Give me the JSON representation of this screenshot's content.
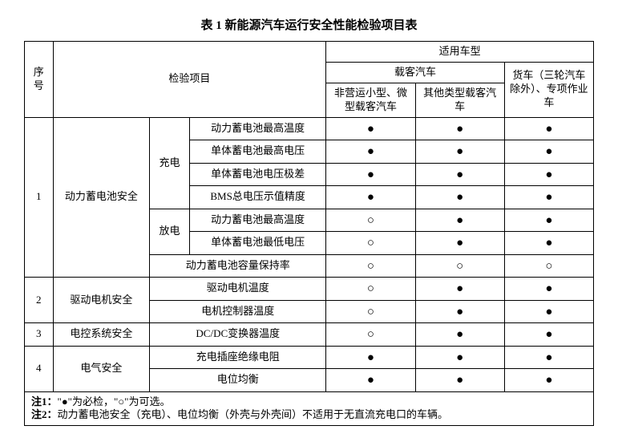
{
  "title": "表 1 新能源汽车运行安全性能检验项目表",
  "headers": {
    "seq": "序号",
    "item": "检验项目",
    "applicable": "适用车型",
    "passenger": "载客汽车",
    "c1": "非营运小型、微型载客汽车",
    "c2": "其他类型载客汽车",
    "c3": "货车（三轮汽车除外）、专项作业车"
  },
  "sections": [
    {
      "seq": "1",
      "cat": "动力蓄电池安全",
      "sub": "充电",
      "items": [
        {
          "name": "动力蓄电池最高温度",
          "v": [
            "●",
            "●",
            "●"
          ]
        },
        {
          "name": "单体蓄电池最高电压",
          "v": [
            "●",
            "●",
            "●"
          ]
        },
        {
          "name": "单体蓄电池电压极差",
          "v": [
            "●",
            "●",
            "●"
          ]
        },
        {
          "name": "BMS总电压示值精度",
          "v": [
            "●",
            "●",
            "●"
          ]
        }
      ]
    },
    {
      "sub": "放电",
      "items": [
        {
          "name": "动力蓄电池最高温度",
          "v": [
            "○",
            "●",
            "●"
          ]
        },
        {
          "name": "单体蓄电池最低电压",
          "v": [
            "○",
            "●",
            "●"
          ]
        }
      ]
    },
    {
      "items": [
        {
          "name": "动力蓄电池容量保持率",
          "span": true,
          "v": [
            "○",
            "○",
            "○"
          ]
        }
      ]
    },
    {
      "seq": "2",
      "cat": "驱动电机安全",
      "items": [
        {
          "name": "驱动电机温度",
          "span": true,
          "v": [
            "○",
            "●",
            "●"
          ]
        },
        {
          "name": "电机控制器温度",
          "span": true,
          "v": [
            "○",
            "●",
            "●"
          ]
        }
      ]
    },
    {
      "seq": "3",
      "cat": "电控系统安全",
      "items": [
        {
          "name": "DC/DC变换器温度",
          "span": true,
          "v": [
            "○",
            "●",
            "●"
          ]
        }
      ]
    },
    {
      "seq": "4",
      "cat": "电气安全",
      "items": [
        {
          "name": "充电插座绝缘电阻",
          "span": true,
          "v": [
            "●",
            "●",
            "●"
          ]
        },
        {
          "name": "电位均衡",
          "span": true,
          "v": [
            "●",
            "●",
            "●"
          ]
        }
      ]
    }
  ],
  "notes": [
    "注1：\"●\"为必检，\"○\"为可选。",
    "注2：动力蓄电池安全（充电）、电位均衡（外壳与外壳间）不适用于无直流充电口的车辆。"
  ]
}
